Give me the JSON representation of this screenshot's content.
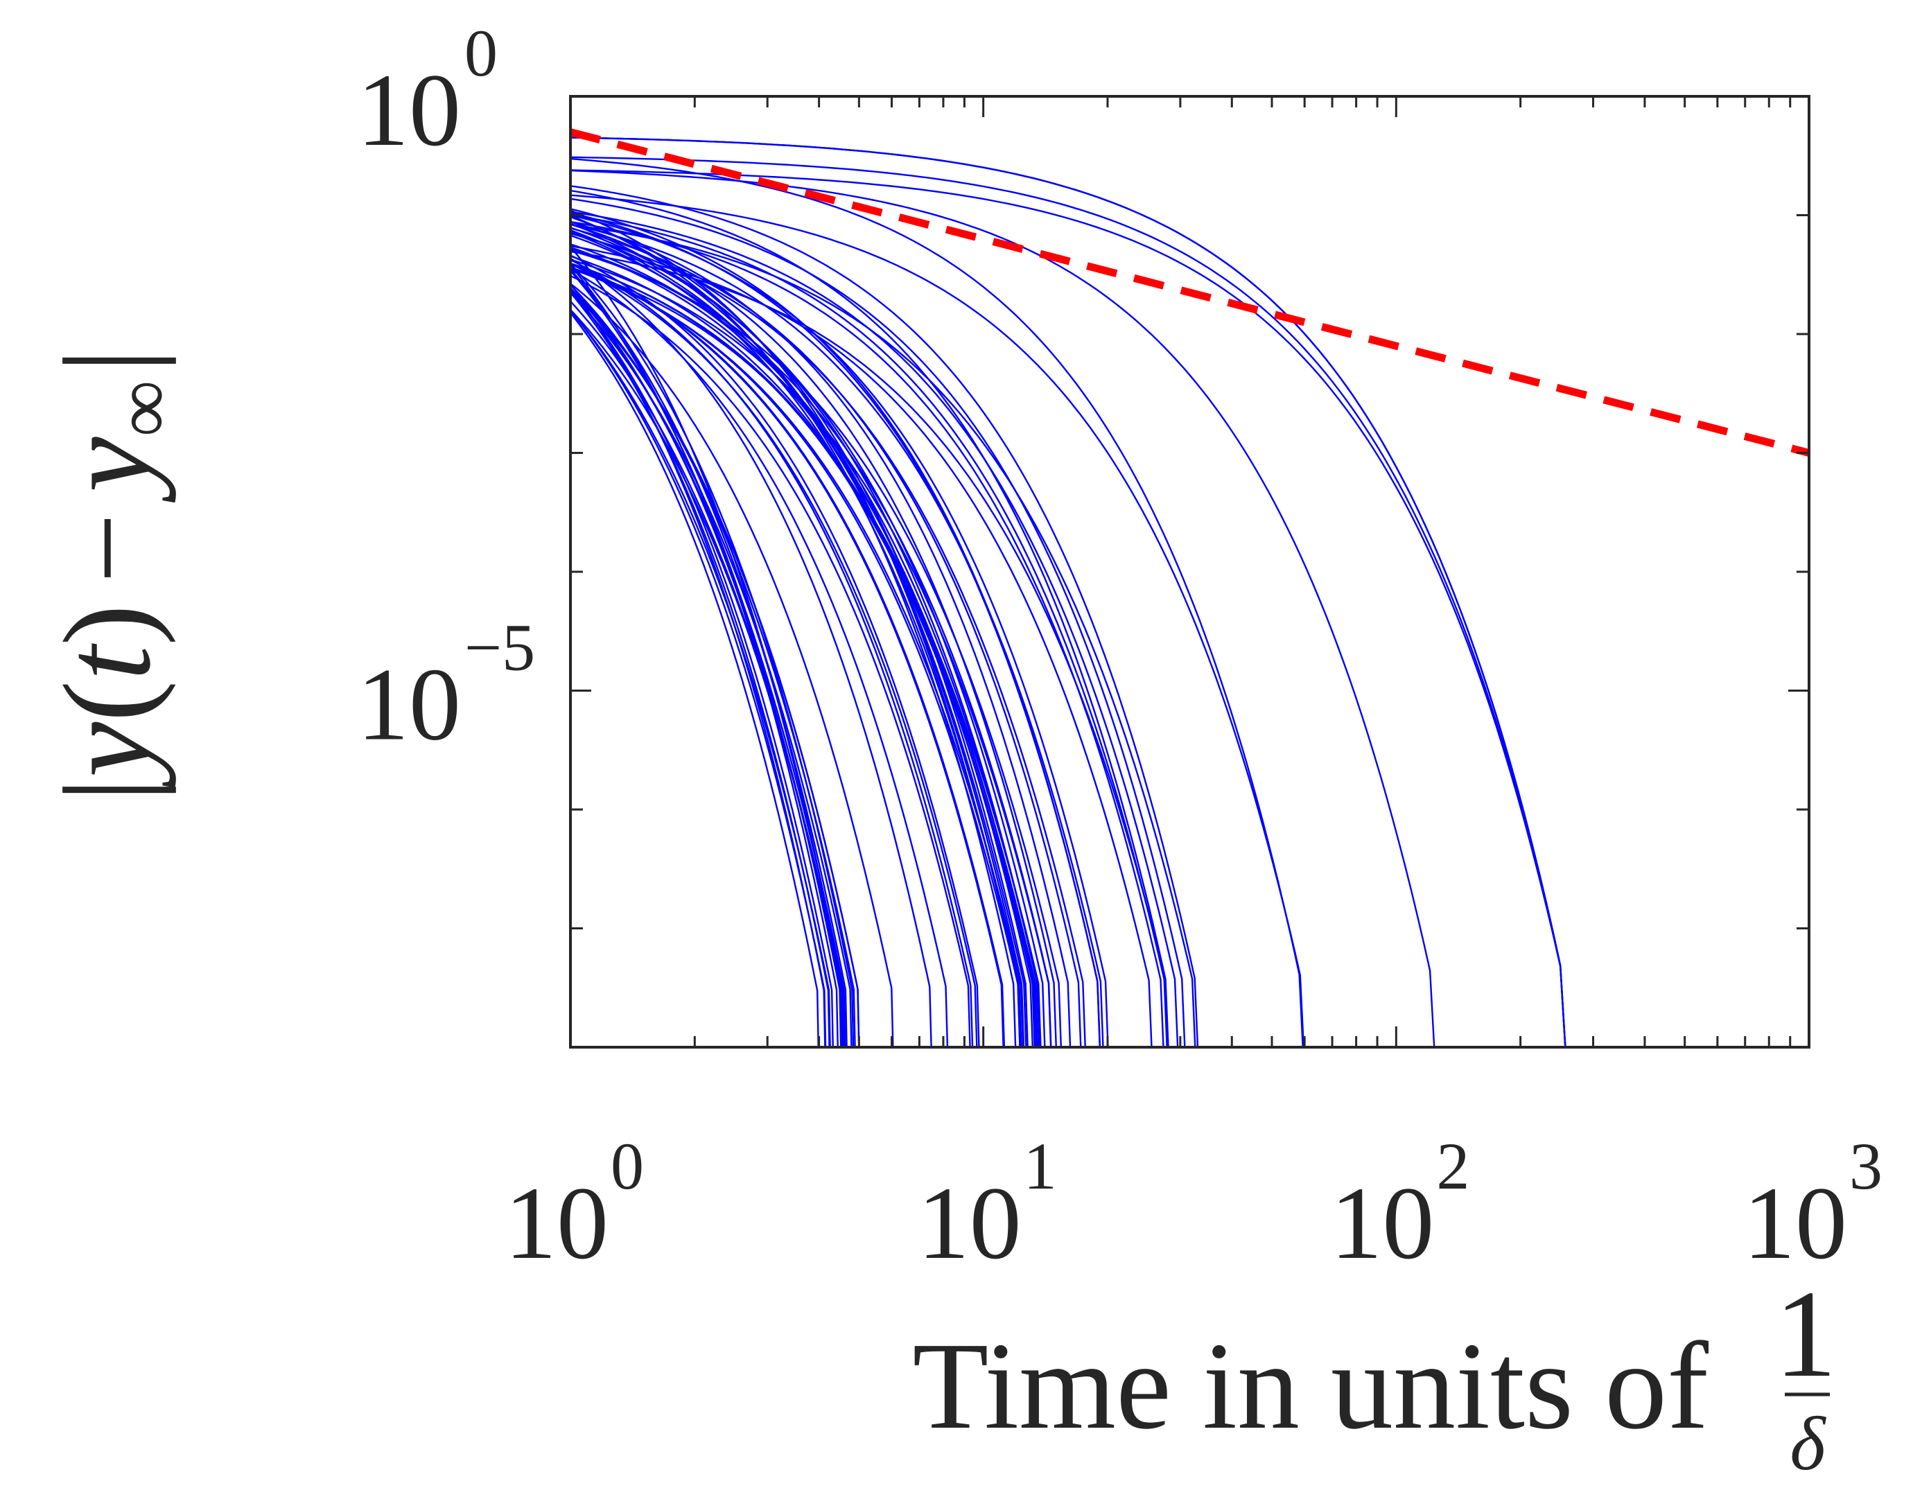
{
  "chart_data": {
    "type": "line",
    "xscale": "log",
    "yscale": "log",
    "xlim": [
      1,
      1000
    ],
    "ylim": [
      1e-08,
      1
    ],
    "grid": false,
    "legend": "none",
    "xlabel": {
      "text": "Time in units of",
      "fraction_numerator": "1",
      "fraction_denominator": "δ"
    },
    "ylabel": {
      "left_bar": "|",
      "y": "y",
      "open_paren": "(",
      "t": "t",
      "close_paren": ")",
      "minus": "−",
      "y_sub": "y",
      "inf": "∞",
      "right_bar": "|"
    },
    "x_ticks": [
      {
        "value": 1,
        "base": "10",
        "exp": "0"
      },
      {
        "value": 10,
        "base": "10",
        "exp": "1"
      },
      {
        "value": 100,
        "base": "10",
        "exp": "2"
      },
      {
        "value": 1000,
        "base": "10",
        "exp": "3"
      }
    ],
    "y_ticks": [
      {
        "value": 1,
        "base": "10",
        "exp": "0"
      },
      {
        "value": 1e-05,
        "base": "10",
        "exp": "−5"
      }
    ],
    "colors": {
      "trajectories": "#0000ff",
      "bound": "#ff0000",
      "axes": "#262626",
      "text": "#262626"
    },
    "bound_series": {
      "style": "dashed",
      "x": [
        1,
        1000
      ],
      "y": [
        0.5,
        0.001
      ]
    },
    "trajectory_series": {
      "style": "solid",
      "count": 72,
      "y_at_t1_range": [
        0.005,
        0.45
      ],
      "falls_below_ylim_at_range": [
        3.8,
        260
      ],
      "plateau_clusters_t": [
        4.5,
        14,
        30,
        60,
        125,
        260
      ]
    }
  }
}
